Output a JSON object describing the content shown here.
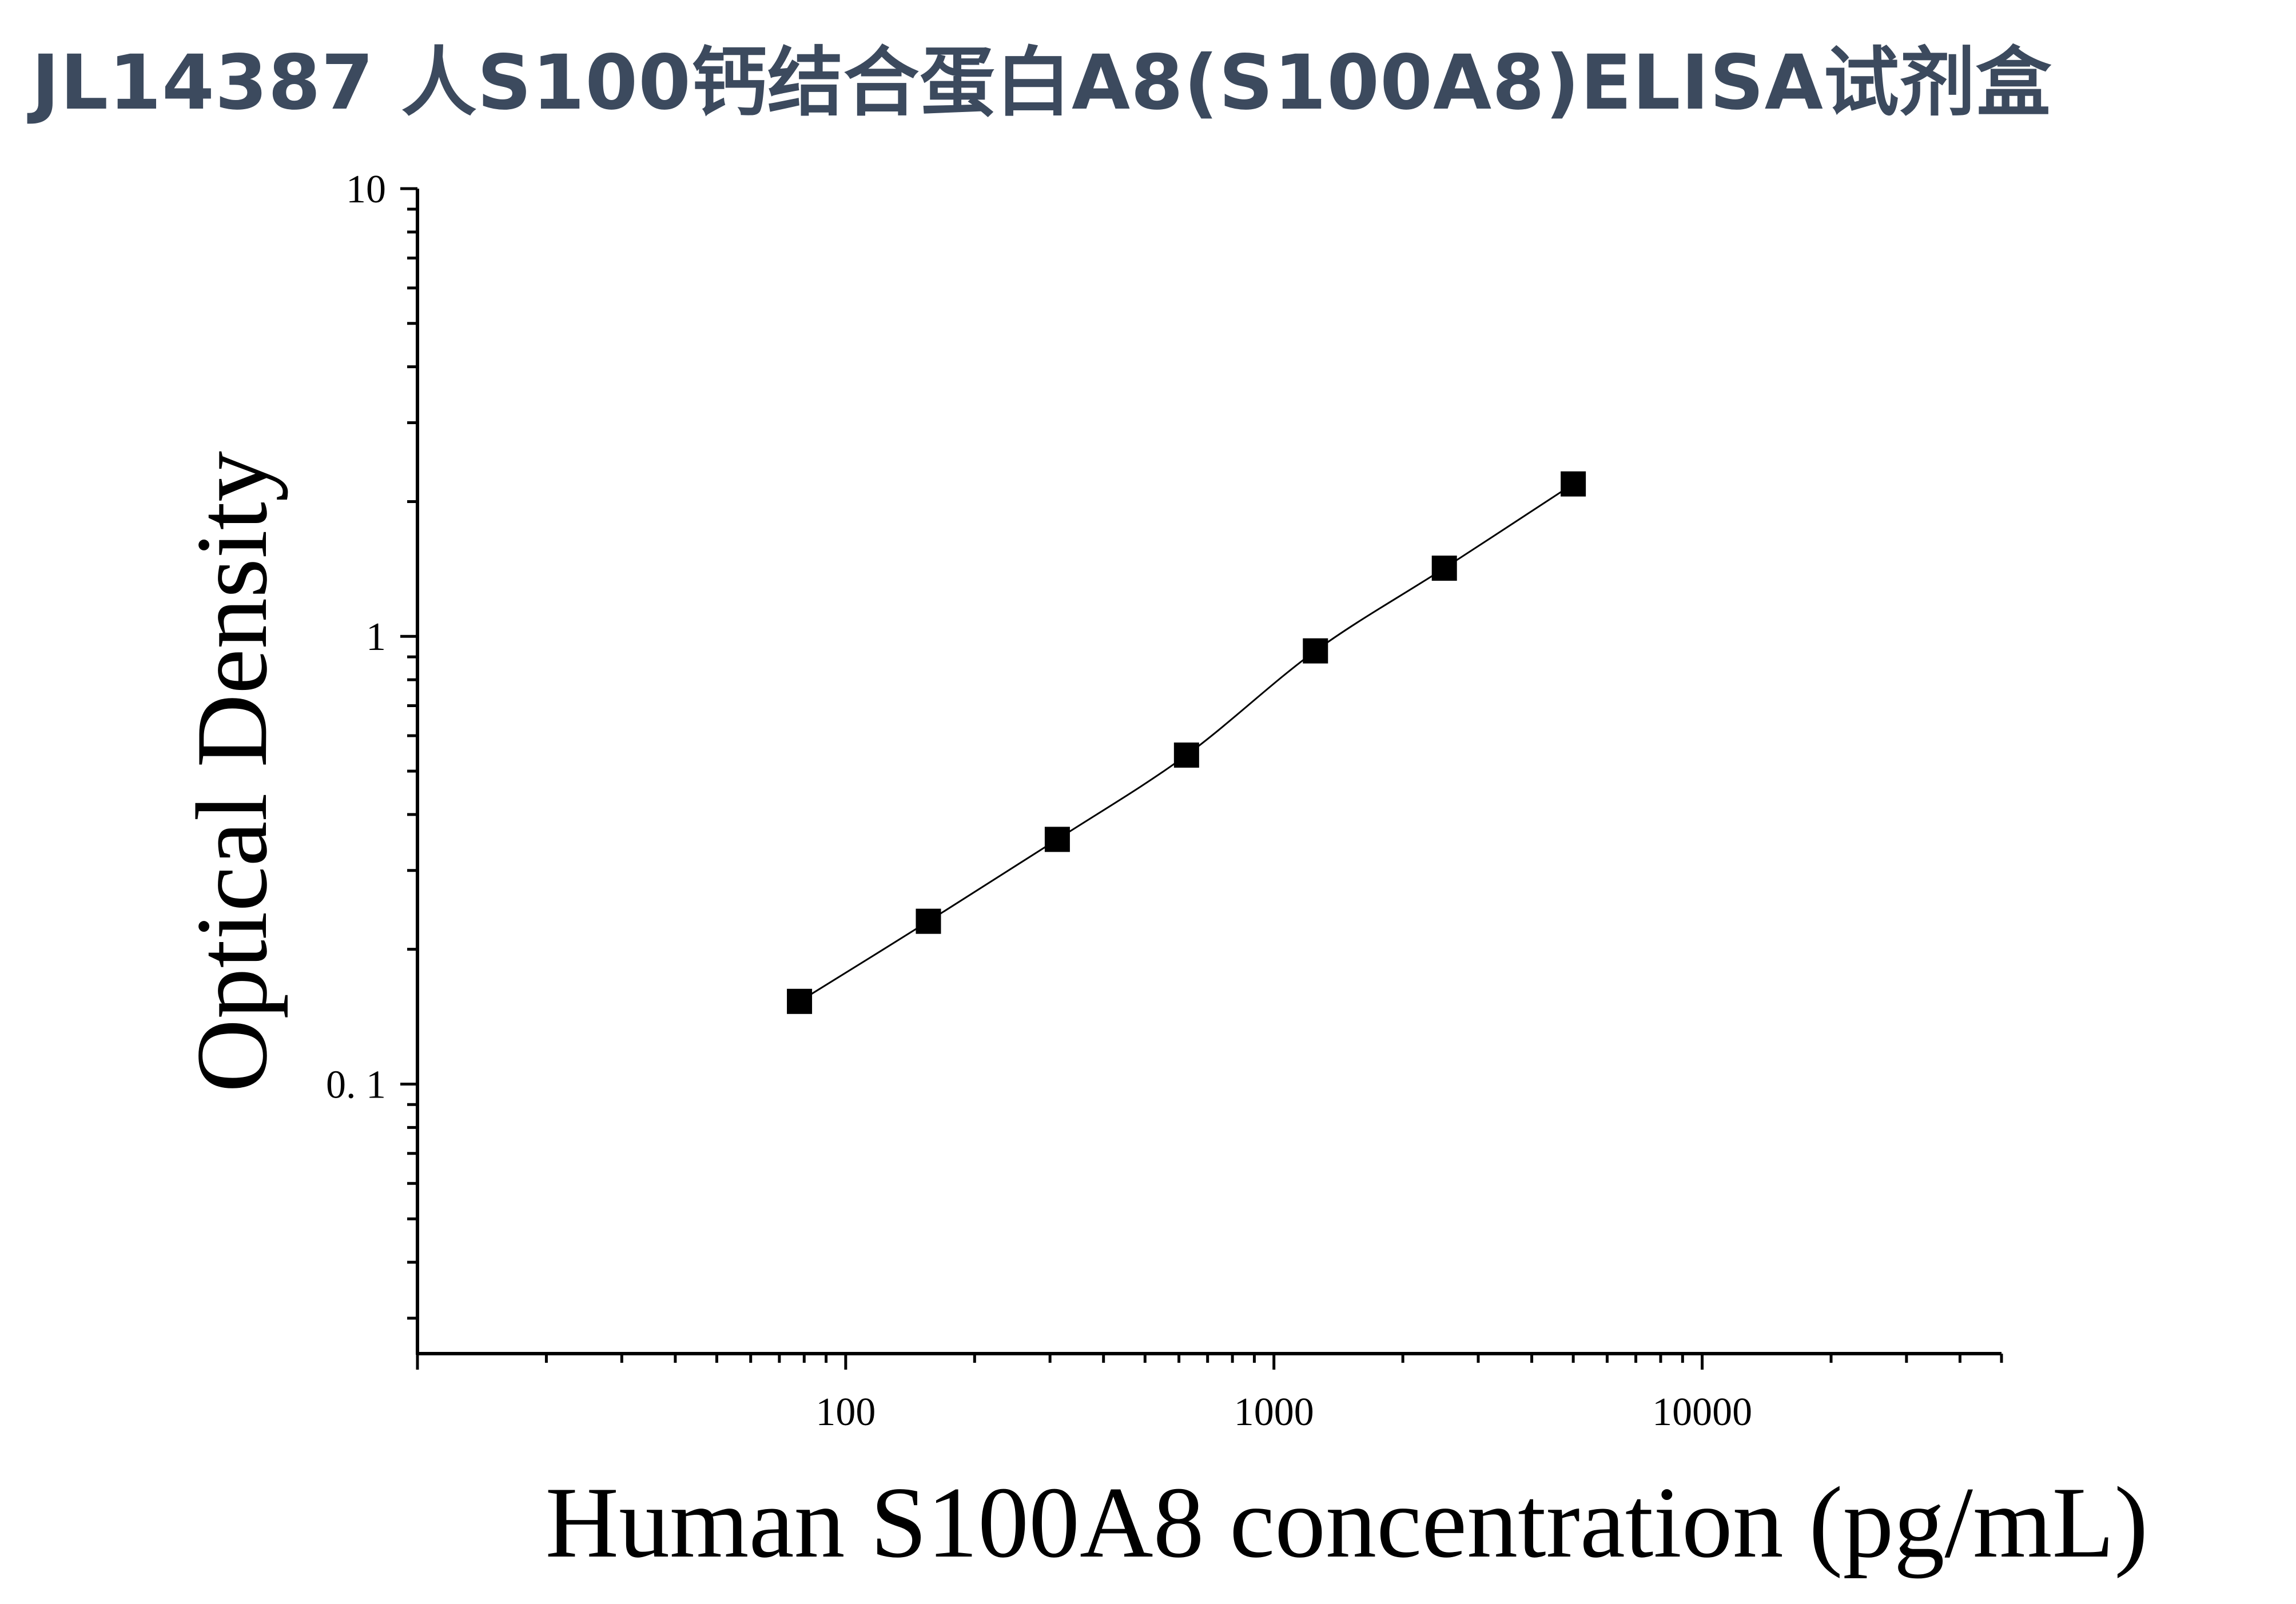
{
  "page": {
    "title": "JL14387 人S100钙结合蛋白A8(S100A8)ELISA试剂盒",
    "title_color": "#3c4a5e"
  },
  "chart_data": {
    "type": "scatter",
    "title": "JL14387 人S100钙结合蛋白A8(S100A8)ELISA试剂盒",
    "xlabel": "Human S100A8 concentration (pg/mL)",
    "ylabel": "Optical Density",
    "xscale": "log",
    "yscale": "log",
    "xlim": [
      10,
      50000
    ],
    "ylim": [
      0.025,
      10
    ],
    "x_ticks": [
      {
        "value": 100,
        "label": "100"
      },
      {
        "value": 1000,
        "label": "1000"
      },
      {
        "value": 10000,
        "label": "10000"
      }
    ],
    "y_ticks": [
      {
        "value": 0.1,
        "label": "0. 1"
      },
      {
        "value": 1,
        "label": "1"
      },
      {
        "value": 10,
        "label": "10"
      }
    ],
    "grid": false,
    "legend": "none",
    "marker": "square",
    "marker_color": "#000000",
    "line": "fitted curve through points",
    "series": [
      {
        "x": [
          78,
          156,
          312,
          625,
          1250,
          2500,
          5000
        ],
        "y": [
          0.153,
          0.231,
          0.352,
          0.543,
          0.928,
          1.42,
          2.19
        ]
      }
    ]
  }
}
